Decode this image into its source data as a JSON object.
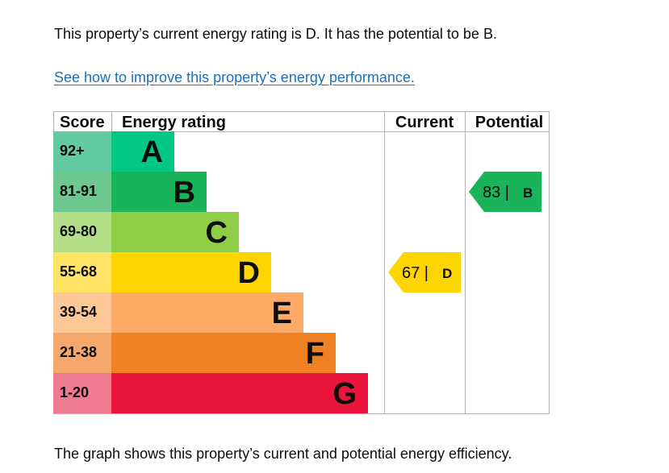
{
  "intro_text": "This property’s current energy rating is D. It has the potential to be B.",
  "improve_link": "See how to improve this property’s energy performance.",
  "footer_text": "The graph shows this property’s current and potential energy efficiency.",
  "chart_data": {
    "type": "bar",
    "columns": {
      "score": "Score",
      "rating": "Energy rating",
      "current": "Current",
      "potential": "Potential"
    },
    "bands": [
      {
        "letter": "A",
        "range": "92+",
        "min": 92,
        "color": "#00c781",
        "score_bg": "#63c9a2"
      },
      {
        "letter": "B",
        "range": "81-91",
        "min": 81,
        "color": "#19b459",
        "score_bg": "#6dc88f"
      },
      {
        "letter": "C",
        "range": "69-80",
        "min": 69,
        "color": "#8dce46",
        "score_bg": "#b5de88"
      },
      {
        "letter": "D",
        "range": "55-68",
        "min": 55,
        "color": "#ffd500",
        "score_bg": "#ffe466"
      },
      {
        "letter": "E",
        "range": "39-54",
        "min": 39,
        "color": "#fcaa65",
        "score_bg": "#fdc796"
      },
      {
        "letter": "F",
        "range": "21-38",
        "min": 21,
        "color": "#ef8023",
        "score_bg": "#f5a66a"
      },
      {
        "letter": "G",
        "range": "1-20",
        "min": 1,
        "color": "#e9153b",
        "score_bg": "#f07a8f"
      }
    ],
    "current": {
      "value": 67,
      "letter": "D",
      "color": "#ffd500"
    },
    "potential": {
      "value": 83,
      "letter": "B",
      "color": "#19b459"
    }
  }
}
